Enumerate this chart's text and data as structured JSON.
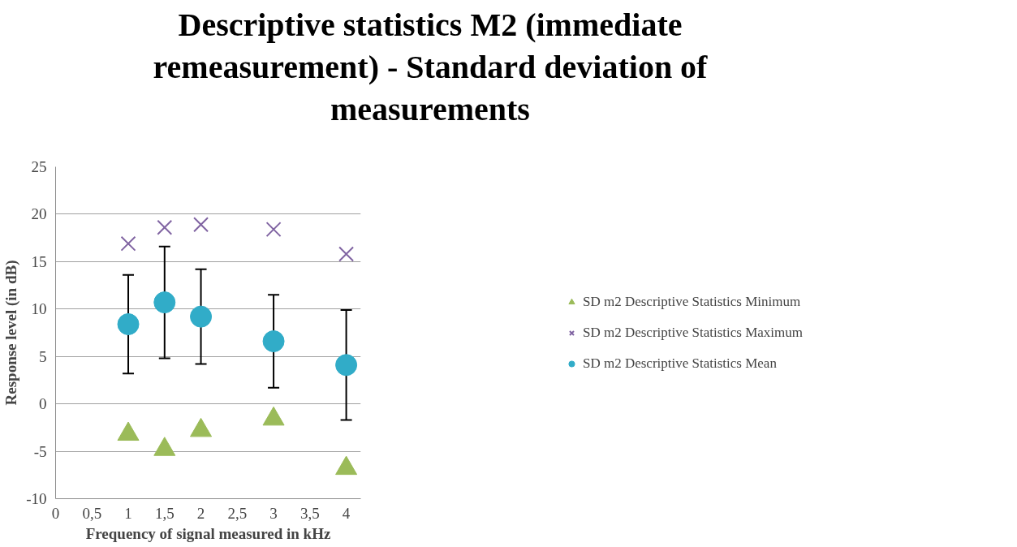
{
  "chart_data": {
    "type": "scatter",
    "title": "Descriptive statistics M2 (immediate remeasurement) - Standard deviation of measurements",
    "xlabel": "Frequency of signal measured in kHz",
    "ylabel": "Response level (in dB)",
    "x": [
      1,
      1.5,
      2,
      3,
      4
    ],
    "series": [
      {
        "name": "SD m2 Descriptive Statistics Minimum",
        "color": "#9bbb59",
        "marker": "triangle",
        "values": [
          -3.2,
          -4.8,
          -2.8,
          -1.6,
          -6.8
        ]
      },
      {
        "name": "SD m2 Descriptive Statistics Maximum",
        "color": "#8064a2",
        "marker": "cross",
        "values": [
          16.9,
          18.6,
          18.9,
          18.4,
          15.8
        ]
      },
      {
        "name": "SD m2 Descriptive Statistics Mean",
        "color": "#31acc8",
        "marker": "circle",
        "values": [
          8.4,
          10.7,
          9.2,
          6.6,
          4.1
        ],
        "errors": [
          5.2,
          5.9,
          5.0,
          4.9,
          5.8
        ]
      }
    ],
    "xlim": [
      0,
      4.2
    ],
    "xticks": [
      0,
      {
        "value": 0.5,
        "label": "0,5"
      },
      1,
      {
        "value": 1.5,
        "label": "1,5"
      },
      2,
      {
        "value": 2.5,
        "label": "2,5"
      },
      3,
      {
        "value": 3.5,
        "label": "3,5"
      },
      4
    ],
    "ylim": [
      -10,
      25
    ],
    "yticks": [
      -10,
      -5,
      0,
      5,
      10,
      15,
      20,
      25
    ],
    "grid": "y",
    "legend": "right"
  }
}
